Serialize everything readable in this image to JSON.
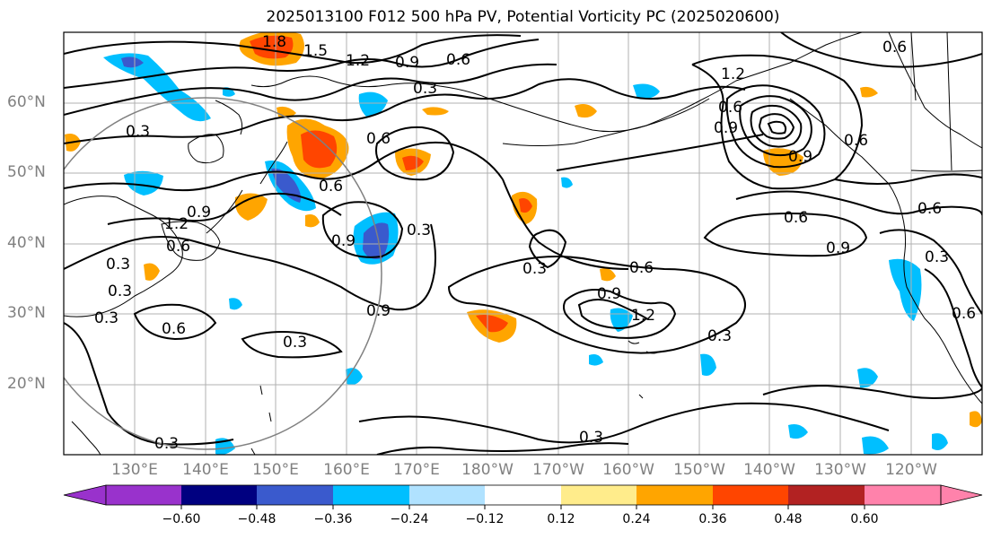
{
  "title": "2025013100 F012 500 hPa PV, Potential Vorticity PC (2025020600)",
  "latitude_labels": [
    "60°N",
    "50°N",
    "40°N",
    "30°N",
    "20°N"
  ],
  "longitude_labels": [
    "130°E",
    "140°E",
    "150°E",
    "160°E",
    "170°E",
    "180°W",
    "170°W",
    "160°W",
    "150°W",
    "140°W",
    "130°W",
    "120°W"
  ],
  "contour_labels": [
    "1.8",
    "1.5",
    "1.2",
    "0.9",
    "0.6",
    "0.3",
    "0.3",
    "0.6",
    "0.6",
    "0.9",
    "0.3",
    "0.9",
    "0.6",
    "0.9",
    "1.2",
    "0.6",
    "0.3",
    "0.6",
    "0.3",
    "0.9",
    "0.6",
    "0.3",
    "0.3",
    "0.3",
    "0.3",
    "0.6",
    "0.9",
    "1.2",
    "0.3",
    "0.3",
    "1.2",
    "0.9",
    "0.6",
    "0.6",
    "0.9",
    "0.6",
    "0.3",
    "0.6"
  ],
  "colorbar": {
    "ticks": [
      "−0.60",
      "−0.48",
      "−0.36",
      "−0.24",
      "−0.12",
      "0.12",
      "0.24",
      "0.36",
      "0.48",
      "0.60"
    ],
    "colors": [
      "#9932cc",
      "#000080",
      "#3a5acd",
      "#00bfff",
      "#b0e2ff",
      "#ffffff",
      "#ffec8b",
      "#ffa500",
      "#ff4500",
      "#b22222",
      "#ff82ab"
    ]
  },
  "colors": {
    "gridline": "#b0b0b0",
    "tick_label": "#808080",
    "contour": "#000000",
    "range_ring": "#808080"
  }
}
